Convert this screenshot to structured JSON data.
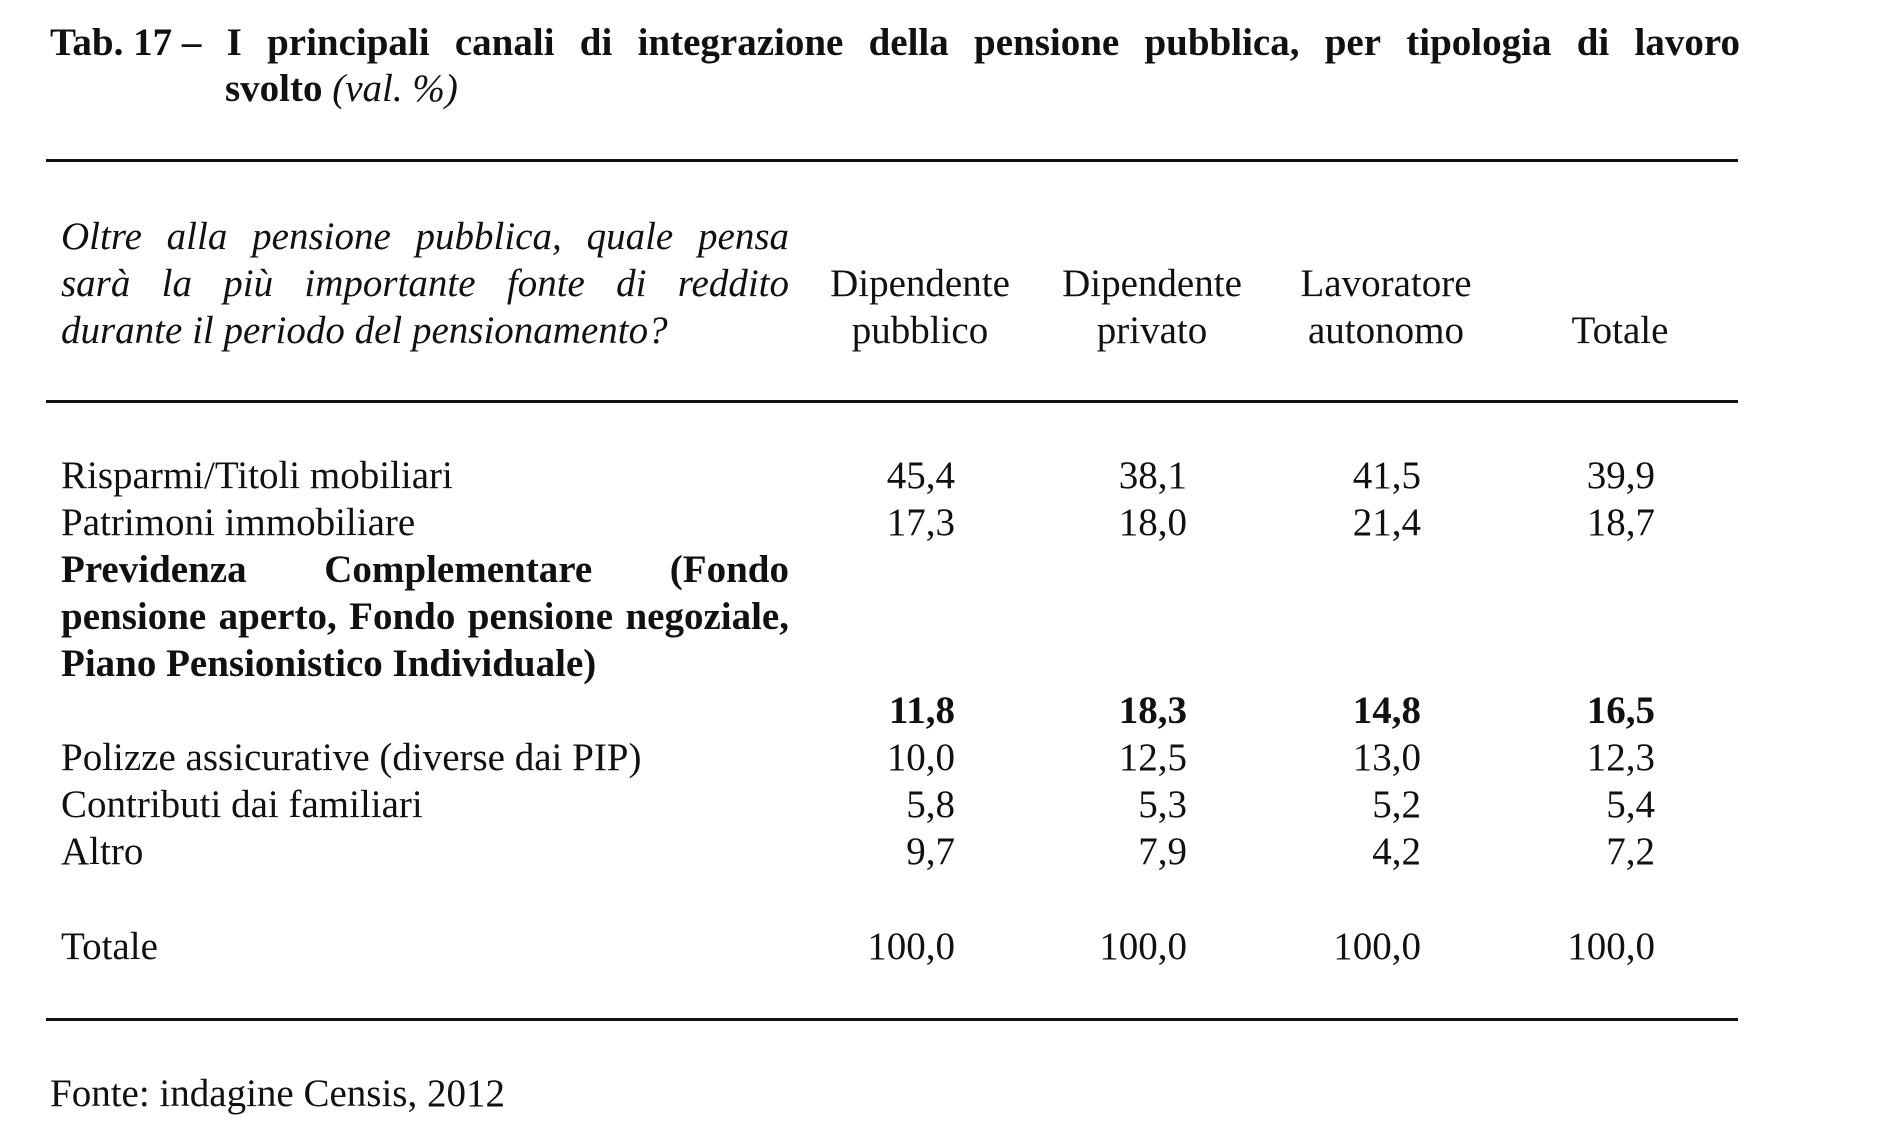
{
  "title": {
    "prefix": "Tab. 17 –",
    "words": [
      "I",
      "principali",
      "canali",
      "di",
      "integrazione",
      "della",
      "pensione",
      "pubblica,",
      "per",
      "tipologia",
      "di",
      "lavoro"
    ],
    "line2_bold": "svolto",
    "line2_italic": "(val. %)"
  },
  "header": {
    "question": "Oltre alla pensione pubblica, quale pensa sarà la più importante fonte di reddito durante il periodo del pensionamento?",
    "columns": [
      {
        "line1": "Dipendente",
        "line2": "pubblico"
      },
      {
        "line1": "Dipendente",
        "line2": "privato"
      },
      {
        "line1": "Lavoratore",
        "line2": "autonomo"
      },
      {
        "line1": "",
        "line2": "Totale"
      }
    ]
  },
  "rows": [
    {
      "label": "Risparmi/Titoli mobiliari",
      "values": [
        "45,4",
        "38,1",
        "41,5",
        "39,9"
      ]
    },
    {
      "label": "Patrimoni immobiliare",
      "values": [
        "17,3",
        "18,0",
        "21,4",
        "18,7"
      ]
    },
    {
      "label": "Previdenza Complementare (Fondo pensione aperto, Fondo pensione negoziale, Piano Pensionistico Individuale)",
      "values": [
        "11,8",
        "18,3",
        "14,8",
        "16,5"
      ]
    },
    {
      "label": "Polizze assicurative (diverse dai PIP)",
      "values": [
        "10,0",
        "12,5",
        "13,0",
        "12,3"
      ]
    },
    {
      "label": "Contributi dai familiari",
      "values": [
        "5,8",
        "5,3",
        "5,2",
        "5,4"
      ]
    },
    {
      "label": "Altro",
      "values": [
        "9,7",
        "7,9",
        "4,2",
        "7,2"
      ]
    }
  ],
  "total": {
    "label": "Totale",
    "values": [
      "100,0",
      "100,0",
      "100,0",
      "100,0"
    ]
  },
  "source": "Fonte: indagine Censis, 2012"
}
